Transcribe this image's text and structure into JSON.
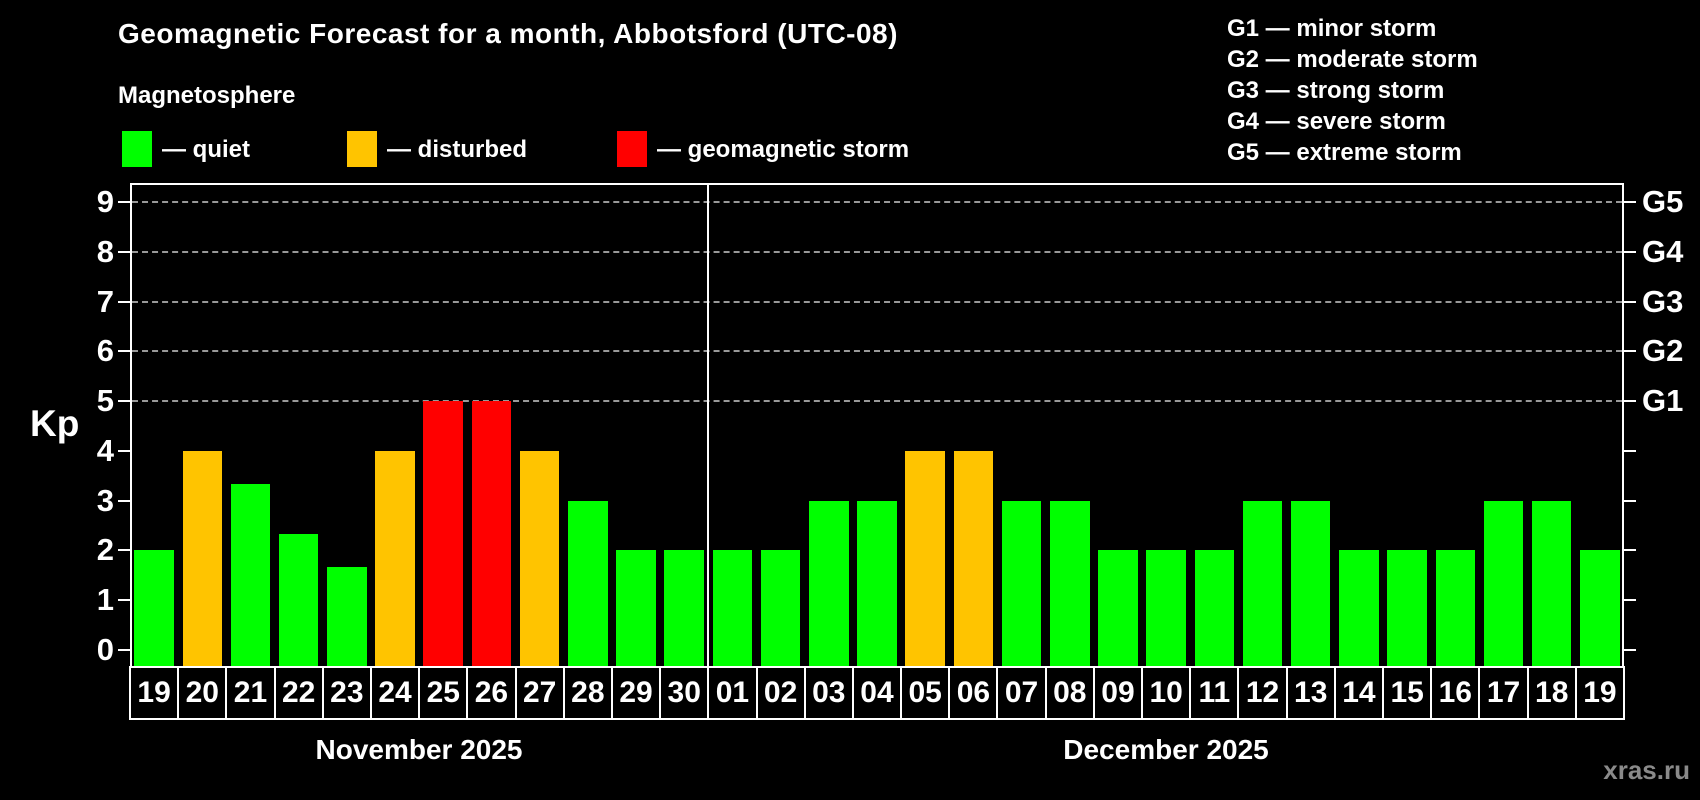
{
  "status_legend": [
    {
      "key": "quiet",
      "label": "— quiet",
      "color": "#00FF00"
    },
    {
      "key": "disturbed",
      "label": "— disturbed",
      "color": "#FFC400"
    },
    {
      "key": "storm",
      "label": "— geomagnetic storm",
      "color": "#FF0000"
    }
  ],
  "g_scale_legend": [
    "G1 — minor storm",
    "G2 — moderate storm",
    "G3 — strong storm",
    "G4 — severe storm",
    "G5 — extreme storm"
  ],
  "watermark": "xras.ru",
  "chart_data": {
    "type": "bar",
    "title": "Geomagnetic Forecast for a month, Abbotsford (UTC-08)",
    "subtitle": "Magnetosphere",
    "ylabel": "Kp",
    "ylim": [
      0,
      9
    ],
    "yticks": [
      0,
      1,
      2,
      3,
      4,
      5,
      6,
      7,
      8,
      9
    ],
    "gridlines_at_kp": [
      5,
      6,
      7,
      8,
      9
    ],
    "grid": "dashed horizontal at storm levels only",
    "right_axis": [
      {
        "kp": 5,
        "label": "G1"
      },
      {
        "kp": 6,
        "label": "G2"
      },
      {
        "kp": 7,
        "label": "G3"
      },
      {
        "kp": 8,
        "label": "G4"
      },
      {
        "kp": 9,
        "label": "G5"
      }
    ],
    "series_colors": {
      "quiet": "#00FF00",
      "disturbed": "#FFC400",
      "storm": "#FF0000"
    },
    "months": [
      {
        "label": "November 2025",
        "days": [
          {
            "day": "19",
            "kp": 2.0,
            "status": "quiet"
          },
          {
            "day": "20",
            "kp": 4.0,
            "status": "disturbed"
          },
          {
            "day": "21",
            "kp": 3.33,
            "status": "quiet"
          },
          {
            "day": "22",
            "kp": 2.33,
            "status": "quiet"
          },
          {
            "day": "23",
            "kp": 1.67,
            "status": "quiet"
          },
          {
            "day": "24",
            "kp": 4.0,
            "status": "disturbed"
          },
          {
            "day": "25",
            "kp": 5.0,
            "status": "storm"
          },
          {
            "day": "26",
            "kp": 5.0,
            "status": "storm"
          },
          {
            "day": "27",
            "kp": 4.0,
            "status": "disturbed"
          },
          {
            "day": "28",
            "kp": 3.0,
            "status": "quiet"
          },
          {
            "day": "29",
            "kp": 2.0,
            "status": "quiet"
          },
          {
            "day": "30",
            "kp": 2.0,
            "status": "quiet"
          }
        ]
      },
      {
        "label": "December 2025",
        "days": [
          {
            "day": "01",
            "kp": 2.0,
            "status": "quiet"
          },
          {
            "day": "02",
            "kp": 2.0,
            "status": "quiet"
          },
          {
            "day": "03",
            "kp": 3.0,
            "status": "quiet"
          },
          {
            "day": "04",
            "kp": 3.0,
            "status": "quiet"
          },
          {
            "day": "05",
            "kp": 4.0,
            "status": "disturbed"
          },
          {
            "day": "06",
            "kp": 4.0,
            "status": "disturbed"
          },
          {
            "day": "07",
            "kp": 3.0,
            "status": "quiet"
          },
          {
            "day": "08",
            "kp": 3.0,
            "status": "quiet"
          },
          {
            "day": "09",
            "kp": 2.0,
            "status": "quiet"
          },
          {
            "day": "10",
            "kp": 2.0,
            "status": "quiet"
          },
          {
            "day": "11",
            "kp": 2.0,
            "status": "quiet"
          },
          {
            "day": "12",
            "kp": 3.0,
            "status": "quiet"
          },
          {
            "day": "13",
            "kp": 3.0,
            "status": "quiet"
          },
          {
            "day": "14",
            "kp": 2.0,
            "status": "quiet"
          },
          {
            "day": "15",
            "kp": 2.0,
            "status": "quiet"
          },
          {
            "day": "16",
            "kp": 2.0,
            "status": "quiet"
          },
          {
            "day": "17",
            "kp": 3.0,
            "status": "quiet"
          },
          {
            "day": "18",
            "kp": 3.0,
            "status": "quiet"
          },
          {
            "day": "19",
            "kp": 2.0,
            "status": "quiet"
          }
        ]
      }
    ]
  }
}
